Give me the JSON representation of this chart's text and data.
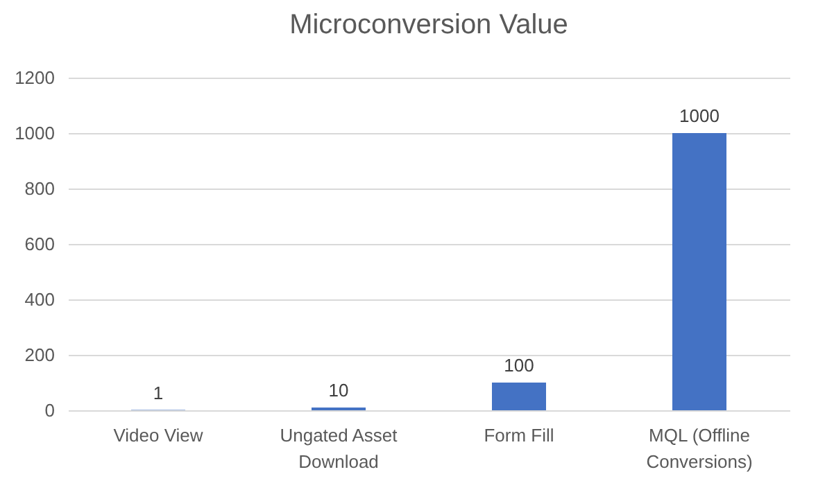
{
  "chart_data": {
    "type": "bar",
    "title": "Microconversion Value",
    "categories": [
      "Video View",
      "Ungated Asset Download",
      "Form Fill",
      "MQL (Offline Conversions)"
    ],
    "values": [
      1,
      10,
      100,
      1000
    ],
    "color": "#4472c4",
    "ylim": [
      0,
      1200
    ],
    "yticks": [
      0,
      200,
      400,
      600,
      800,
      1000,
      1200
    ],
    "grid": "y",
    "data_labels": true
  }
}
